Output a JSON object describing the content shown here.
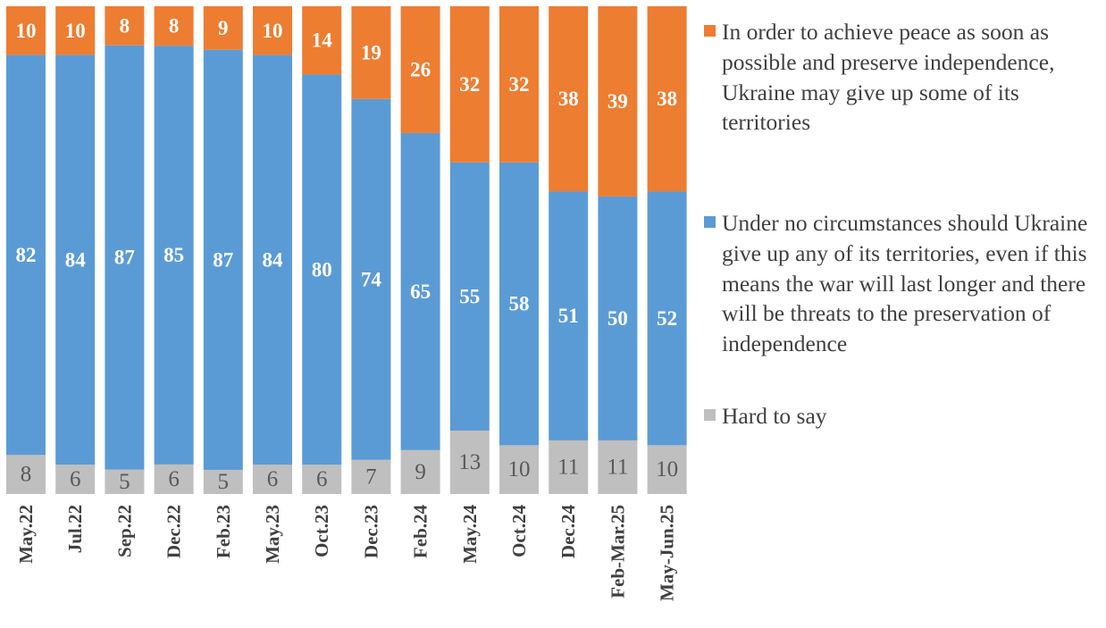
{
  "chart_data": {
    "type": "bar",
    "stacked": true,
    "categories": [
      "May.22",
      "Jul.22",
      "Sep.22",
      "Dec.22",
      "Feb.23",
      "May.23",
      "Oct.23",
      "Dec.23",
      "Feb.24",
      "May.24",
      "Oct.24",
      "Dec.24",
      "Feb-Mar.25",
      "May-Jun.25"
    ],
    "series": [
      {
        "name": "Hard to say",
        "color": "#bfbfbf",
        "label_color": "#595959",
        "values": [
          8,
          6,
          5,
          6,
          5,
          6,
          6,
          7,
          9,
          13,
          10,
          11,
          11,
          10
        ]
      },
      {
        "name": "Under no circumstances should Ukraine give up any of its territories, even if this means the war will last longer and there will be threats to the preservation of independence",
        "color": "#5b9bd5",
        "label_color": "#ffffff",
        "values": [
          82,
          84,
          87,
          85,
          87,
          84,
          80,
          74,
          65,
          55,
          58,
          51,
          50,
          52
        ]
      },
      {
        "name": "In order to achieve peace as soon as possible and preserve independence, Ukraine may give up some of its territories",
        "color": "#ed7d31",
        "label_color": "#ffffff",
        "values": [
          10,
          10,
          8,
          8,
          9,
          10,
          14,
          19,
          26,
          32,
          32,
          38,
          39,
          38
        ]
      }
    ],
    "ylim": [
      0,
      100
    ],
    "grid": false,
    "legend_position": "right"
  },
  "legend": [
    {
      "label": "In order to achieve peace as soon as possible and preserve independence, Ukraine may give up some of its territories",
      "color": "#ed7d31"
    },
    {
      "label": "Under no circumstances should Ukraine give up any of its territories, even if this means the war will last longer and there will be threats to the preservation of independence",
      "color": "#5b9bd5"
    },
    {
      "label": "Hard to say",
      "color": "#bfbfbf"
    }
  ]
}
